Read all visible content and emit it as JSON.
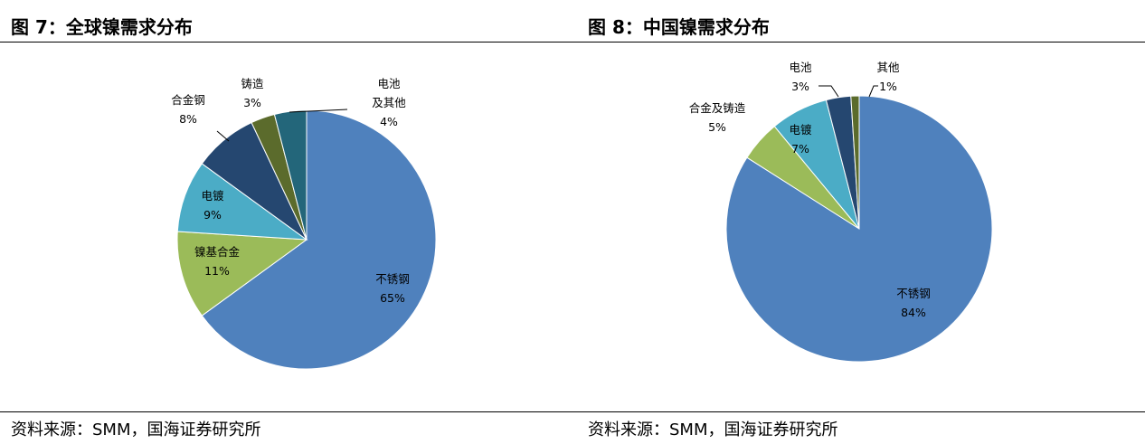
{
  "figures": [
    {
      "title": "图 7：全球镍需求分布",
      "source": "资料来源：SMM，国海证券研究所"
    },
    {
      "title": "图 8：中国镍需求分布",
      "source": "资料来源：SMM，国海证券研究所"
    }
  ],
  "colors": {
    "不锈钢": "#4f81bd",
    "镍基合金": "#9bbb59",
    "合金及铸造": "#9bbb59",
    "电镀": "#4bacc6",
    "合金钢": "#254770",
    "铸造": "#5b6b2c",
    "电池及其他": "#23667a",
    "电池": "#254770",
    "其他": "#5b6b2c"
  },
  "chart_data": [
    {
      "type": "pie",
      "title": "全球镍需求分布",
      "categories": [
        "不锈钢",
        "镍基合金",
        "电镀",
        "合金钢",
        "铸造",
        "电池及其他"
      ],
      "label_lines": [
        [
          "不锈钢",
          "65%"
        ],
        [
          "镍基合金",
          "11%"
        ],
        [
          "电镀",
          "9%"
        ],
        [
          "合金钢",
          "8%"
        ],
        [
          "铸造",
          "3%"
        ],
        [
          "电池",
          "及其他",
          "4%"
        ]
      ],
      "values": [
        65,
        11,
        9,
        8,
        3,
        4
      ]
    },
    {
      "type": "pie",
      "title": "中国镍需求分布",
      "categories": [
        "不锈钢",
        "合金及铸造",
        "电镀",
        "电池",
        "其他"
      ],
      "label_lines": [
        [
          "不锈钢",
          "84%"
        ],
        [
          "合金及铸造",
          "5%"
        ],
        [
          "电镀",
          "7%"
        ],
        [
          "电池",
          "3%"
        ],
        [
          "其他",
          "1%"
        ]
      ],
      "values": [
        84,
        5,
        7,
        3,
        1
      ]
    }
  ]
}
